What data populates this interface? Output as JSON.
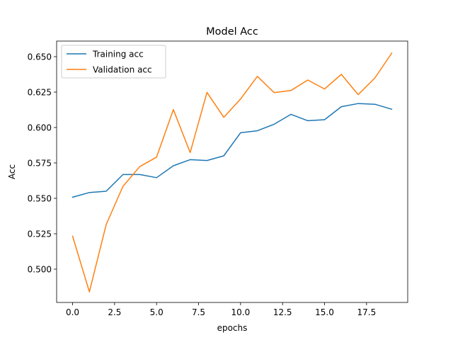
{
  "chart_data": {
    "type": "line",
    "title": "Model Acc",
    "xlabel": "epochs",
    "ylabel": "Acc",
    "x": [
      0,
      1,
      2,
      3,
      4,
      5,
      6,
      7,
      8,
      9,
      10,
      11,
      12,
      13,
      14,
      15,
      16,
      17,
      18,
      19
    ],
    "xlim": [
      -0.95,
      19.95
    ],
    "ylim": [
      0.4765,
      0.661
    ],
    "xticks": [
      0.0,
      2.5,
      5.0,
      7.5,
      10.0,
      12.5,
      15.0,
      17.5
    ],
    "xtick_labels": [
      "0.0",
      "2.5",
      "5.0",
      "7.5",
      "10.0",
      "12.5",
      "15.0",
      "17.5"
    ],
    "yticks": [
      0.5,
      0.525,
      0.55,
      0.575,
      0.6,
      0.625,
      0.65
    ],
    "ytick_labels": [
      "0.500",
      "0.525",
      "0.550",
      "0.575",
      "0.600",
      "0.625",
      "0.650"
    ],
    "grid": false,
    "legend_position": "upper-left",
    "series": [
      {
        "name": "Training acc",
        "color": "#1f77b4",
        "values": [
          0.5508,
          0.5541,
          0.555,
          0.5668,
          0.5668,
          0.5646,
          0.573,
          0.5773,
          0.5767,
          0.58,
          0.5963,
          0.5977,
          0.6023,
          0.6093,
          0.6048,
          0.6055,
          0.6147,
          0.6169,
          0.6164,
          0.6129
        ]
      },
      {
        "name": "Validation acc",
        "color": "#ff7f0e",
        "values": [
          0.5233,
          0.484,
          0.5315,
          0.5585,
          0.5724,
          0.5791,
          0.6126,
          0.5823,
          0.6248,
          0.6072,
          0.6201,
          0.6361,
          0.6246,
          0.6261,
          0.6335,
          0.6272,
          0.6375,
          0.6232,
          0.635,
          0.6525
        ]
      }
    ]
  }
}
